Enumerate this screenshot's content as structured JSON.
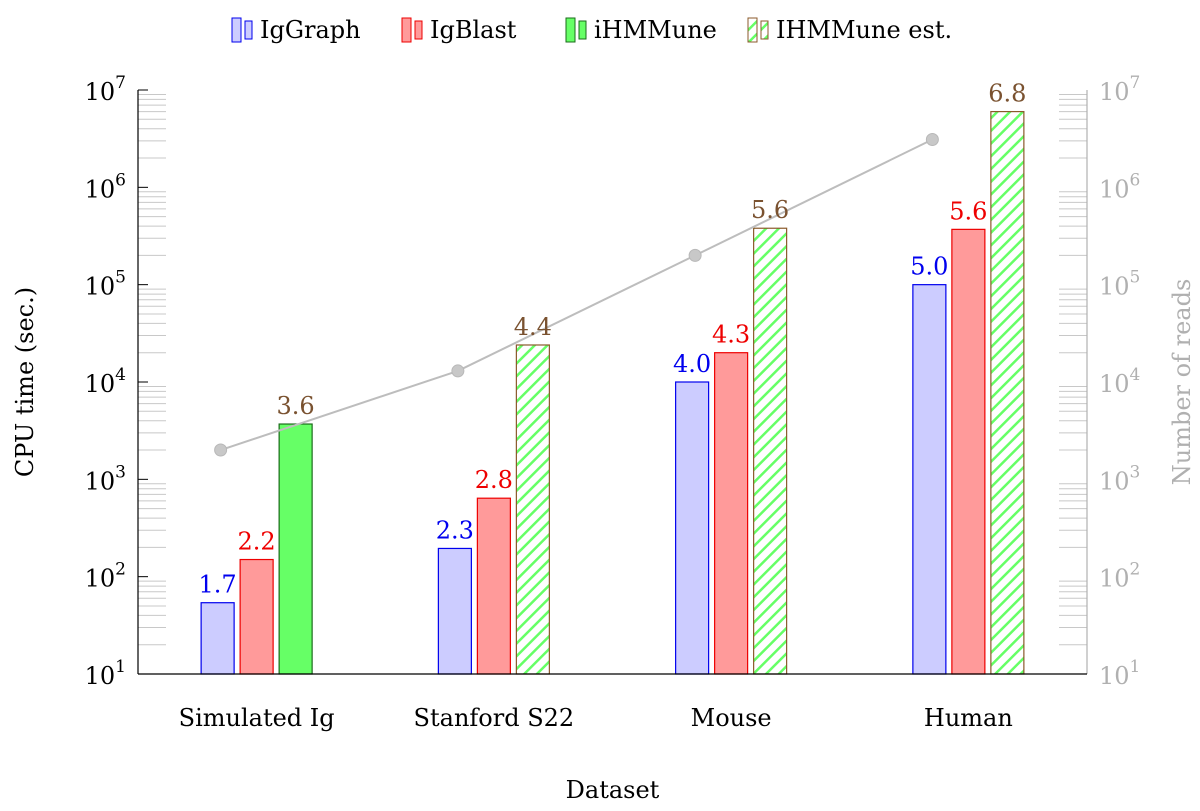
{
  "chart_data": {
    "type": "bar",
    "xlabel": "Dataset",
    "ylabel": "CPU time (sec.)",
    "y2label": "Number of reads",
    "yscale": "log",
    "ylim": [
      10,
      10000000
    ],
    "y2scale": "log",
    "y2lim": [
      10,
      10000000
    ],
    "yticks": [
      "10^1",
      "10^2",
      "10^3",
      "10^4",
      "10^5",
      "10^6",
      "10^7"
    ],
    "categories": [
      "Simulated Ig",
      "Stanford S22",
      "Mouse",
      "Human"
    ],
    "legend_position": "top-center",
    "series": [
      {
        "name": "IgGraph",
        "color": "#0000ee",
        "fill": "#ccccff",
        "pattern": "solid",
        "values": [
          54,
          195,
          10000,
          100000
        ],
        "labels": [
          "1.7",
          "2.3",
          "4.0",
          "5.0"
        ],
        "label_color": "#0000ee"
      },
      {
        "name": "IgBlast",
        "color": "#ee0000",
        "fill": "#ff9a9a",
        "pattern": "solid",
        "values": [
          150,
          640,
          20000,
          370000
        ],
        "labels": [
          "2.2",
          "2.8",
          "4.3",
          "5.6"
        ],
        "label_color": "#ee0000"
      },
      {
        "name": "iHMMune",
        "color": "#1a6b1a",
        "fill": "#66ff66",
        "pattern": "solid",
        "values": [
          3700,
          null,
          null,
          null
        ],
        "labels": [
          "3.6",
          "",
          "",
          ""
        ],
        "label_color": "#7a5230"
      },
      {
        "name": "IHMMune est.",
        "color": "#8b5a2b",
        "fill": "#66ff66",
        "pattern": "hatch",
        "values": [
          null,
          24000,
          380000,
          6000000
        ],
        "labels": [
          "",
          "4.4",
          "5.6",
          "6.8"
        ],
        "label_color": "#7a5230"
      }
    ],
    "reads_line": {
      "axis": "right",
      "color": "#bdbdbd",
      "values": [
        2000,
        13000,
        200000,
        3100000
      ]
    }
  }
}
